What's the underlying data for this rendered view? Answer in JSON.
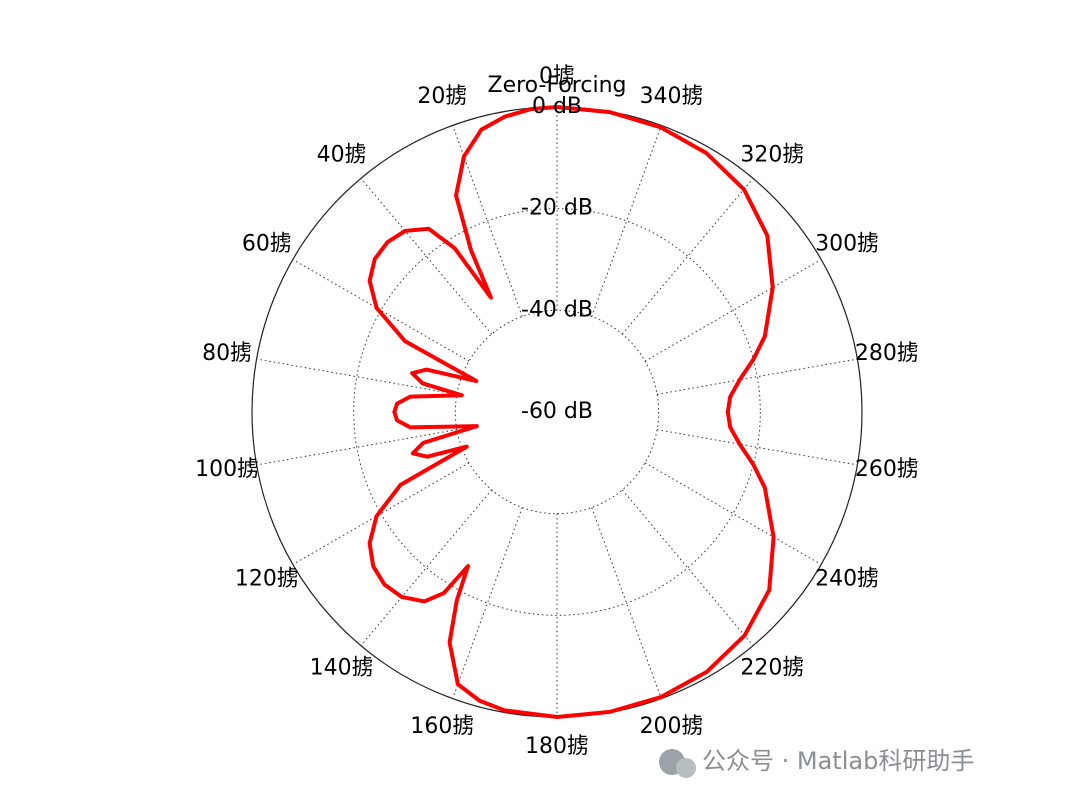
{
  "chart_data": {
    "type": "polar",
    "title": "Zero-Forcing",
    "theta": [
      0,
      5,
      10,
      15,
      20,
      25,
      28,
      30,
      32,
      35,
      40,
      45,
      50,
      55,
      60,
      65,
      69,
      72,
      75,
      78,
      80,
      84,
      87,
      90,
      93,
      96,
      100,
      103,
      106,
      109,
      111,
      115,
      120,
      125,
      130,
      135,
      140,
      145,
      148,
      150,
      152,
      155,
      160,
      165,
      170,
      180,
      190,
      200,
      210,
      220,
      230,
      240,
      250,
      255,
      260,
      265,
      270,
      275,
      280,
      285,
      290,
      300,
      310,
      320,
      330,
      340,
      350,
      360
    ],
    "series": [
      {
        "color": "#ff0000",
        "values": [
          0,
          -0.2,
          -1,
          -2.5,
          -6.5,
          -13,
          -24,
          -34,
          -22,
          -16,
          -13.5,
          -12.8,
          -13.2,
          -15,
          -19,
          -27,
          -43,
          -33,
          -30.5,
          -33,
          -41,
          -31,
          -28.5,
          -28,
          -28.5,
          -31,
          -44,
          -33,
          -30.5,
          -33,
          -41,
          -26,
          -19,
          -15,
          -12.8,
          -12,
          -12.5,
          -14.5,
          -18,
          -25,
          -18,
          -10,
          -3,
          -1.2,
          -0.4,
          0,
          -0.1,
          -0.3,
          -1,
          -2.6,
          -5.5,
          -10.8,
          -16.5,
          -20,
          -23.5,
          -25.8,
          -26.4,
          -25.8,
          -23.5,
          -20,
          -16.5,
          -11,
          -6,
          -2.8,
          -1.2,
          -0.4,
          -0.1,
          0
        ]
      }
    ],
    "rlim": [
      -60,
      0
    ],
    "rticks": [
      {
        "value": -60,
        "label": "-60 dB"
      },
      {
        "value": -40,
        "label": "-40 dB"
      },
      {
        "value": -20,
        "label": "-20 dB"
      },
      {
        "value": 0,
        "label": "0 dB"
      }
    ],
    "thetaticks": [
      {
        "value": 0,
        "label": "0掳"
      },
      {
        "value": 20,
        "label": "20掳"
      },
      {
        "value": 40,
        "label": "40掳"
      },
      {
        "value": 60,
        "label": "60掳"
      },
      {
        "value": 80,
        "label": "80掳"
      },
      {
        "value": 100,
        "label": "100掳"
      },
      {
        "value": 120,
        "label": "120掳"
      },
      {
        "value": 140,
        "label": "140掳"
      },
      {
        "value": 160,
        "label": "160掳"
      },
      {
        "value": 180,
        "label": "180掳"
      },
      {
        "value": 200,
        "label": "200掳"
      },
      {
        "value": 220,
        "label": "220掳"
      },
      {
        "value": 240,
        "label": "240掳"
      },
      {
        "value": 260,
        "label": "260掳"
      },
      {
        "value": 280,
        "label": "280掳"
      },
      {
        "value": 300,
        "label": "300掳"
      },
      {
        "value": 320,
        "label": "320掳"
      },
      {
        "value": 340,
        "label": "340掳"
      }
    ],
    "watermark": "公众号 · Matlab科研助手"
  }
}
